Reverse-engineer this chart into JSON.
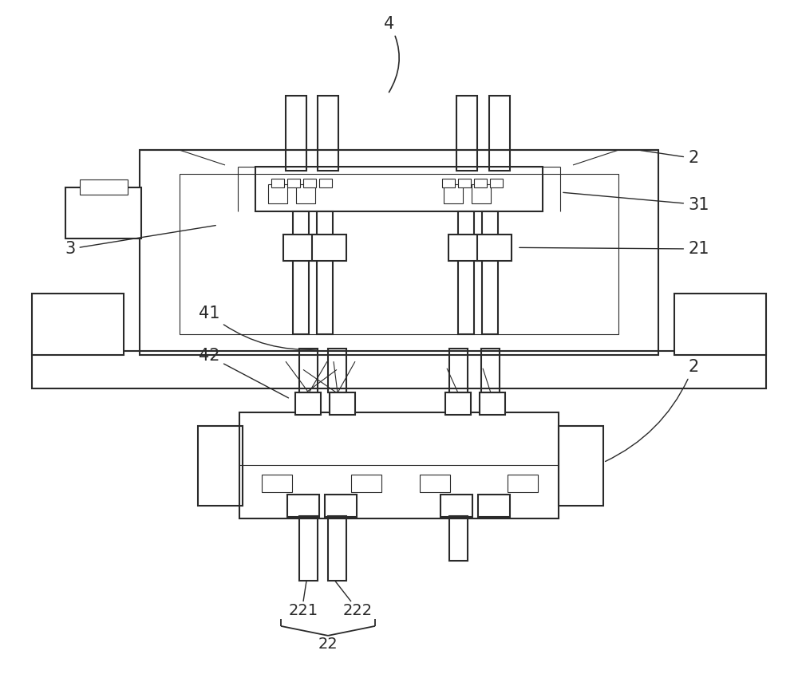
{
  "background_color": "#ffffff",
  "line_color": "#2a2a2a",
  "line_width": 1.5,
  "thin_line": 0.8,
  "fig_width": 10.0,
  "fig_height": 8.55
}
